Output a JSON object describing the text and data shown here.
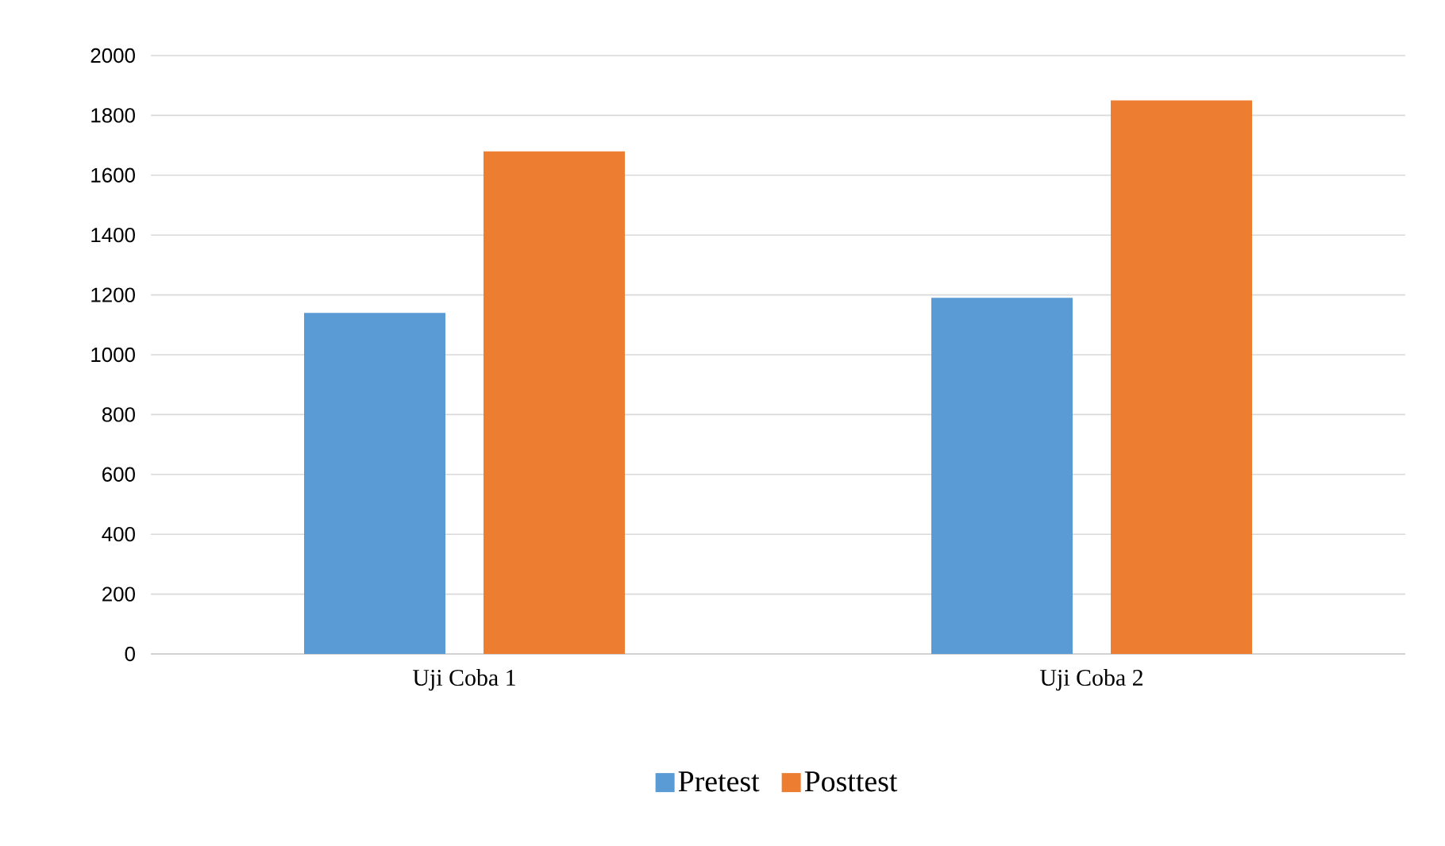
{
  "chart_data": {
    "type": "bar",
    "categories": [
      "Uji Coba 1",
      "Uji Coba 2"
    ],
    "series": [
      {
        "name": "Pretest",
        "color": "#5b9bd5",
        "values": [
          1140,
          1190
        ]
      },
      {
        "name": "Posttest",
        "color": "#ed7d31",
        "values": [
          1680,
          1850
        ]
      }
    ],
    "ylim": [
      0,
      2000
    ],
    "yticks": [
      0,
      200,
      400,
      600,
      800,
      1000,
      1200,
      1400,
      1600,
      1800,
      2000
    ],
    "grid": "y",
    "legend": "bottom"
  }
}
